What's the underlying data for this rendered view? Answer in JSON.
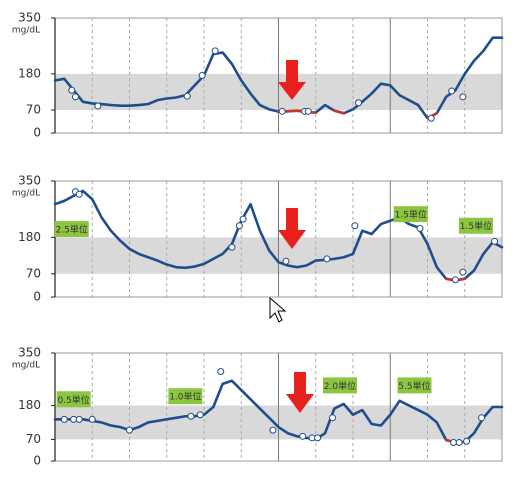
{
  "chart_data": [
    {
      "type": "line",
      "ylabel": "mg/dL",
      "ylim": [
        0,
        350
      ],
      "yticks": [
        0,
        70,
        180,
        350
      ],
      "xlim": [
        0,
        24
      ],
      "xticks": [
        0,
        2,
        4,
        6,
        8,
        10,
        12,
        14,
        16,
        18,
        20,
        22,
        24
      ],
      "solid_xticks": [
        12,
        18
      ],
      "target_range": [
        70,
        180
      ],
      "band_color": "#d9d9d9",
      "low_color": "#d0312d",
      "x": [
        0,
        0.5,
        1,
        1.5,
        2,
        2.5,
        3,
        3.5,
        4,
        4.5,
        5,
        5.5,
        6,
        6.5,
        7,
        7.5,
        8,
        8.5,
        9,
        9.5,
        10,
        10.5,
        11,
        11.5,
        12,
        12.5,
        13,
        13.5,
        14,
        14.5,
        15,
        15.5,
        16,
        16.5,
        17,
        17.5,
        18,
        18.5,
        19,
        19.5,
        20,
        20.5,
        21,
        21.5,
        22,
        22.5,
        23,
        23.5,
        24
      ],
      "series": [
        {
          "color": "#1f4e8c",
          "values": [
            160,
            165,
            130,
            95,
            90,
            88,
            85,
            83,
            83,
            85,
            88,
            100,
            105,
            108,
            115,
            145,
            175,
            240,
            245,
            210,
            160,
            120,
            85,
            72,
            65,
            66,
            68,
            64,
            62,
            85,
            68,
            60,
            72,
            95,
            120,
            150,
            145,
            115,
            100,
            85,
            45,
            60,
            110,
            130,
            180,
            220,
            250,
            290,
            290
          ]
        }
      ],
      "markers": {
        "x": [
          0.9,
          1.1,
          2.3,
          7.1,
          7.9,
          8.6,
          12.2,
          13.4,
          13.6,
          16.3,
          20.2,
          21.3,
          21.9
        ],
        "values": [
          130,
          110,
          82,
          112,
          175,
          250,
          66,
          66,
          66,
          92,
          45,
          128,
          110
        ]
      },
      "annotations": []
    },
    {
      "type": "line",
      "ylabel": "mg/dL",
      "ylim": [
        0,
        350
      ],
      "yticks": [
        0,
        70,
        180,
        350
      ],
      "xlim": [
        0,
        24
      ],
      "xticks": [
        0,
        2,
        4,
        6,
        8,
        10,
        12,
        14,
        16,
        18,
        20,
        22,
        24
      ],
      "solid_xticks": [
        12,
        18
      ],
      "target_range": [
        70,
        180
      ],
      "band_color": "#d9d9d9",
      "low_color": "#d0312d",
      "x": [
        0,
        0.5,
        1,
        1.5,
        2,
        2.5,
        3,
        3.5,
        4,
        4.5,
        5,
        5.5,
        6,
        6.5,
        7,
        7.5,
        8,
        8.5,
        9,
        9.5,
        10,
        10.5,
        11,
        11.5,
        12,
        12.5,
        13,
        13.5,
        14,
        14.5,
        15,
        15.5,
        16,
        16.5,
        17,
        17.5,
        18,
        18.5,
        19,
        19.5,
        20,
        20.5,
        21,
        21.5,
        22,
        22.5,
        23,
        23.5,
        24
      ],
      "series": [
        {
          "color": "#1f4e8c",
          "values": [
            280,
            290,
            305,
            320,
            295,
            240,
            200,
            170,
            145,
            130,
            120,
            110,
            98,
            90,
            88,
            92,
            100,
            115,
            130,
            160,
            230,
            280,
            200,
            140,
            105,
            95,
            90,
            95,
            110,
            112,
            115,
            120,
            130,
            200,
            190,
            220,
            230,
            240,
            220,
            210,
            160,
            90,
            55,
            50,
            55,
            80,
            130,
            165,
            150
          ]
        }
      ],
      "markers": {
        "x": [
          1.1,
          1.3,
          9.5,
          9.9,
          10.1,
          12.4,
          14.6,
          16.1,
          19.6,
          21.5,
          21.9,
          23.6
        ],
        "values": [
          318,
          310,
          150,
          215,
          235,
          108,
          115,
          215,
          207,
          52,
          75,
          168
        ]
      },
      "annotations": [
        {
          "text": "2.5単位",
          "x": 0.9,
          "y": 205
        },
        {
          "text": "1.5単位",
          "x": 19.1,
          "y": 250
        },
        {
          "text": "1.5単位",
          "x": 22.6,
          "y": 215
        }
      ]
    },
    {
      "type": "line",
      "ylabel": "mg/dL",
      "ylim": [
        0,
        350
      ],
      "yticks": [
        0,
        70,
        180,
        350
      ],
      "xlim": [
        0,
        24
      ],
      "xticks": [
        0,
        2,
        4,
        6,
        8,
        10,
        12,
        14,
        16,
        18,
        20,
        22,
        24
      ],
      "solid_xticks": [
        12,
        18
      ],
      "target_range": [
        70,
        180
      ],
      "band_color": "#d9d9d9",
      "low_color": "#d0312d",
      "x": [
        0,
        0.5,
        1,
        1.5,
        2,
        2.5,
        3,
        3.5,
        4,
        4.5,
        5,
        5.5,
        6,
        6.5,
        7,
        7.5,
        8,
        8.5,
        9,
        9.5,
        10,
        10.5,
        11,
        11.5,
        12,
        12.5,
        13,
        13.5,
        14,
        14.5,
        15,
        15.5,
        16,
        16.5,
        17,
        17.5,
        18,
        18.5,
        19,
        19.5,
        20,
        20.5,
        21,
        21.5,
        22,
        22.5,
        23,
        23.5,
        24
      ],
      "series": [
        {
          "color": "#1f4e8c",
          "values": [
            135,
            135,
            135,
            135,
            130,
            125,
            115,
            110,
            100,
            110,
            125,
            130,
            135,
            140,
            145,
            145,
            150,
            175,
            250,
            260,
            230,
            200,
            170,
            140,
            110,
            90,
            80,
            75,
            70,
            90,
            170,
            185,
            150,
            165,
            120,
            115,
            150,
            195,
            180,
            165,
            150,
            125,
            68,
            60,
            62,
            90,
            140,
            175,
            175
          ]
        }
      ],
      "markers": {
        "x": [
          0.5,
          1,
          1.3,
          2,
          4,
          7.3,
          7.8,
          8.9,
          11.7,
          13.3,
          13.8,
          14.1,
          14.9,
          21.4,
          21.7,
          22.1,
          22.9
        ],
        "values": [
          135,
          135,
          135,
          135,
          100,
          145,
          150,
          290,
          100,
          80,
          75,
          75,
          140,
          60,
          60,
          64,
          140
        ]
      },
      "annotations": [
        {
          "text": "0.5単位",
          "x": 1,
          "y": 200
        },
        {
          "text": "1.0単位",
          "x": 7,
          "y": 210
        },
        {
          "text": "2.0単位",
          "x": 15.3,
          "y": 245
        },
        {
          "text": "5.5単位",
          "x": 19.3,
          "y": 245
        }
      ]
    }
  ]
}
